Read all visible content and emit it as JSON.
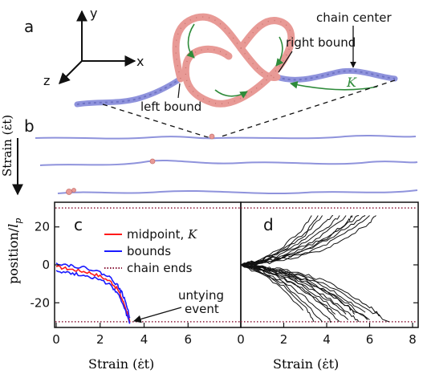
{
  "panel_a": {
    "letter": "a",
    "axis_x": "x",
    "axis_y": "y",
    "axis_z": "z",
    "label_left_bound": "left bound",
    "label_right_bound": "right bound",
    "label_chain_center": "chain center",
    "label_K": "K",
    "chain_color": "#8f93dc",
    "knot_color": "#e89a96",
    "arrow_color": "#2e8b3a"
  },
  "panel_b": {
    "letter": "b",
    "ylabel": "Strain (ε̇t)"
  },
  "chart_data": [
    {
      "panel": "c",
      "type": "line",
      "xlabel": "Strain (ε̇t)",
      "ylabel": "position/l_p",
      "xlim": [
        0,
        8
      ],
      "ylim": [
        -33,
        33
      ],
      "xticks": [
        "0",
        "2",
        "4",
        "6"
      ],
      "yticks": [
        "20",
        "0",
        "-20"
      ],
      "legend_position": "top-right",
      "legend": [
        {
          "name": "midpoint, K",
          "color": "#ff1a1a",
          "style": "solid"
        },
        {
          "name": "bounds",
          "color": "#1a1aff",
          "style": "solid"
        },
        {
          "name": "chain ends",
          "color": "#8b1a3a",
          "style": "dotted"
        }
      ],
      "annotation": "untying event",
      "series": [
        {
          "name": "midpoint, K",
          "x": [
            0,
            0.5,
            1.0,
            1.5,
            2.0,
            2.5,
            2.8,
            3.0,
            3.2,
            3.35
          ],
          "y": [
            -1,
            -2,
            -3,
            -4,
            -6,
            -9,
            -13,
            -18,
            -24,
            -30
          ]
        },
        {
          "name": "bounds (upper)",
          "x": [
            0,
            0.5,
            1.0,
            1.5,
            2.0,
            2.5,
            2.8,
            3.0,
            3.2,
            3.35
          ],
          "y": [
            1,
            0,
            -1,
            -2,
            -4,
            -7,
            -11,
            -15,
            -21,
            -28
          ]
        },
        {
          "name": "bounds (lower)",
          "x": [
            0,
            0.5,
            1.0,
            1.5,
            2.0,
            2.5,
            2.8,
            3.0,
            3.2,
            3.35
          ],
          "y": [
            -3,
            -4,
            -5,
            -6,
            -8,
            -11,
            -15,
            -20,
            -26,
            -31
          ]
        },
        {
          "name": "chain ends (top)",
          "x": [
            0,
            8
          ],
          "y": [
            30,
            30
          ]
        },
        {
          "name": "chain ends (bottom)",
          "x": [
            0,
            8
          ],
          "y": [
            -30,
            -30
          ]
        }
      ]
    },
    {
      "panel": "d",
      "type": "line",
      "xlabel": "Strain (ε̇t)",
      "xlim": [
        0,
        8
      ],
      "ylim": [
        -33,
        33
      ],
      "xticks": [
        "0",
        "2",
        "4",
        "6",
        "8"
      ],
      "trajectory_color": "#111111",
      "series": [
        {
          "x": [
            0,
            1,
            2,
            3,
            4,
            5,
            5.5
          ],
          "y": [
            0,
            1.5,
            4.5,
            9,
            15,
            22,
            26
          ]
        },
        {
          "x": [
            0,
            1,
            2,
            3,
            4,
            4.6
          ],
          "y": [
            0,
            2,
            6,
            12,
            19,
            26
          ]
        },
        {
          "x": [
            0,
            1,
            2,
            3,
            3.8
          ],
          "y": [
            0,
            2.5,
            8,
            16,
            26
          ]
        },
        {
          "x": [
            0,
            1,
            2,
            3,
            4,
            5,
            6
          ],
          "y": [
            0,
            1,
            3,
            6,
            11,
            18,
            26
          ]
        },
        {
          "x": [
            0,
            1,
            2,
            3,
            4,
            4.9
          ],
          "y": [
            0,
            1.8,
            5,
            10,
            17,
            26
          ]
        },
        {
          "x": [
            0,
            1,
            2,
            2.8,
            3.3
          ],
          "y": [
            0,
            3,
            10,
            18,
            26
          ]
        },
        {
          "x": [
            0,
            1,
            2,
            3,
            4,
            5,
            5.8
          ],
          "y": [
            0,
            1.2,
            3.5,
            7.5,
            13,
            20,
            26
          ]
        },
        {
          "x": [
            0,
            1,
            2,
            3,
            3.6
          ],
          "y": [
            0,
            2.8,
            9,
            17,
            26
          ]
        },
        {
          "x": [
            0,
            1,
            2,
            3,
            4,
            4.3
          ],
          "y": [
            0,
            2.2,
            7,
            14,
            23,
            26
          ]
        },
        {
          "x": [
            0,
            1,
            2,
            3,
            4,
            5,
            6,
            6.3
          ],
          "y": [
            0,
            0.8,
            2.5,
            5,
            9,
            15,
            22,
            26
          ]
        },
        {
          "x": [
            0,
            1,
            2,
            3,
            4,
            5,
            5.2
          ],
          "y": [
            0,
            1.6,
            4,
            8,
            14,
            23,
            26
          ]
        },
        {
          "x": [
            0,
            1,
            2,
            3,
            4,
            5,
            6,
            6.9
          ],
          "y": [
            0,
            -1,
            -3,
            -6,
            -11,
            -17,
            -24,
            -30
          ]
        },
        {
          "x": [
            0,
            1,
            2,
            3,
            4,
            5,
            6
          ],
          "y": [
            0,
            -1.5,
            -4,
            -8,
            -14,
            -21,
            -29
          ]
        },
        {
          "x": [
            0,
            1,
            2,
            3,
            4,
            5,
            5.5
          ],
          "y": [
            0,
            -2,
            -5,
            -10,
            -17,
            -25,
            -30
          ]
        },
        {
          "x": [
            0,
            1,
            2,
            3,
            4,
            5
          ],
          "y": [
            0,
            -2.5,
            -6,
            -12,
            -20,
            -29
          ]
        },
        {
          "x": [
            0,
            1,
            2,
            3,
            4,
            4.6
          ],
          "y": [
            0,
            -3,
            -7.5,
            -14,
            -23,
            -30
          ]
        },
        {
          "x": [
            0,
            1,
            2,
            3,
            4,
            4.2
          ],
          "y": [
            0,
            -3.5,
            -9,
            -17,
            -27,
            -30
          ]
        },
        {
          "x": [
            0,
            1,
            2,
            3,
            3.8
          ],
          "y": [
            0,
            -4,
            -10,
            -20,
            -30
          ]
        },
        {
          "x": [
            0,
            1,
            2,
            3,
            4,
            5,
            6,
            6.5
          ],
          "y": [
            0,
            -0.8,
            -2.5,
            -5,
            -9,
            -15,
            -22,
            -27
          ]
        },
        {
          "x": [
            0,
            1,
            2,
            3,
            4,
            5,
            5.8
          ],
          "y": [
            0,
            -1.2,
            -3.5,
            -7,
            -12,
            -19,
            -25
          ]
        },
        {
          "x": [
            0,
            1,
            2,
            3,
            3.4
          ],
          "y": [
            0,
            -4.5,
            -11,
            -22,
            -30
          ]
        },
        {
          "x": [
            0,
            1,
            2,
            2.9
          ],
          "y": [
            0,
            -5,
            -13,
            -24
          ]
        },
        {
          "x": [
            0,
            1,
            2,
            3,
            4,
            5,
            5.9
          ],
          "y": [
            0,
            -1.8,
            -4.5,
            -9,
            -15,
            -22,
            -29
          ]
        },
        {
          "x": [
            0,
            1,
            2,
            3,
            4,
            4.9
          ],
          "y": [
            0,
            -2.2,
            -5.5,
            -11,
            -18,
            -26
          ]
        },
        {
          "x": [
            0,
            1,
            2,
            3,
            4,
            4.4
          ],
          "y": [
            0,
            -2.8,
            -7,
            -13.5,
            -22,
            -26
          ]
        },
        {
          "x": [
            0,
            1,
            2,
            3,
            4,
            5,
            5.3
          ],
          "y": [
            0,
            -1.4,
            -3.8,
            -8,
            -14,
            -22,
            -26
          ]
        }
      ],
      "chain_ends": [
        30,
        -30
      ]
    }
  ]
}
